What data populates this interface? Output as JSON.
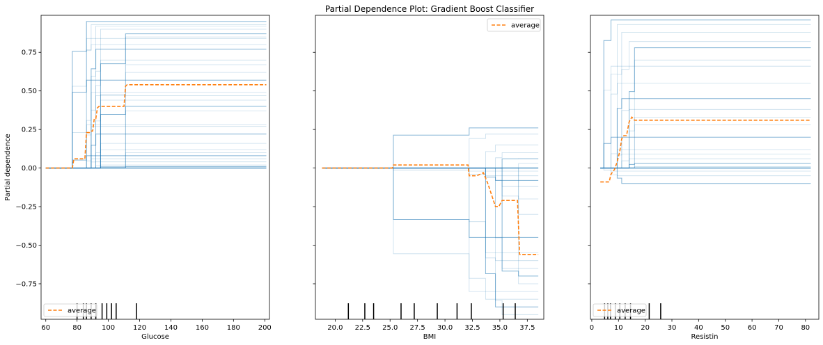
{
  "figure": {
    "title": "Partial Dependence Plot: Gradient Boost Classifier",
    "colors": {
      "ice": "#1f77b4",
      "average": "#ff7f0e",
      "rug": "#000000",
      "axis": "#000000"
    }
  },
  "chart_data": [
    {
      "type": "line",
      "id": "glucose",
      "xlabel": "Glucose",
      "ylabel": "Partial dependence",
      "xlim": [
        57,
        203
      ],
      "ylim": [
        -0.98,
        0.99
      ],
      "xticks": [
        "60",
        "80",
        "100",
        "120",
        "140",
        "160",
        "180",
        "200"
      ],
      "xtick_values": [
        60,
        80,
        100,
        120,
        140,
        160,
        180,
        200
      ],
      "yticks": [
        "0.75",
        "0.50",
        "0.25",
        "0.00",
        "−0.25",
        "−0.50",
        "−0.75"
      ],
      "ytick_values": [
        0.75,
        0.5,
        0.25,
        0.0,
        -0.25,
        -0.5,
        -0.75
      ],
      "legend": {
        "label": "average",
        "position": "lower-left"
      },
      "average": {
        "name": "average",
        "x": [
          60,
          77,
          78,
          84,
          85,
          86,
          87,
          88,
          89,
          90,
          91,
          92,
          93,
          94,
          95,
          104,
          106,
          108,
          110,
          111,
          112,
          201
        ],
        "y": [
          0,
          0,
          0.06,
          0.06,
          0.06,
          0.23,
          0.23,
          0.23,
          0.24,
          0.24,
          0.32,
          0.32,
          0.39,
          0.4,
          0.4,
          0.4,
          0.4,
          0.4,
          0.4,
          0.53,
          0.54,
          0.54
        ]
      },
      "ice_baseline": {
        "x": [
          60,
          201
        ],
        "y": [
          0,
          0
        ]
      },
      "ice_plateaus": [
        0.95,
        0.93,
        0.92,
        0.9,
        0.87,
        0.85,
        0.84,
        0.8,
        0.77,
        0.7,
        0.67,
        0.62,
        0.57,
        0.49,
        0.47,
        0.44,
        0.4,
        0.37,
        0.28,
        0.27,
        0.22,
        0.16,
        0.12,
        0.1,
        0.08,
        0.06,
        0.04,
        0.02,
        0.01
      ],
      "ice_steps_x": [
        77,
        86,
        89,
        92,
        95,
        111
      ],
      "rug": [
        80,
        84,
        86,
        89,
        92,
        96,
        99,
        102,
        105,
        118
      ]
    },
    {
      "type": "line",
      "id": "bmi",
      "xlabel": "BMI",
      "ylabel": "",
      "xlim": [
        18.2,
        39.0
      ],
      "ylim": [
        -0.98,
        0.99
      ],
      "xticks": [
        "20.0",
        "22.5",
        "25.0",
        "27.5",
        "30.0",
        "32.5",
        "35.0",
        "37.5"
      ],
      "xtick_values": [
        20.0,
        22.5,
        25.0,
        27.5,
        30.0,
        32.5,
        35.0,
        37.5
      ],
      "yticks": [],
      "ytick_values": [
        0.75,
        0.5,
        0.25,
        0.0,
        -0.25,
        -0.5,
        -0.75
      ],
      "legend": {
        "label": "average",
        "position": "upper-right"
      },
      "average": {
        "name": "average",
        "x": [
          18.8,
          25.2,
          25.3,
          32.1,
          32.2,
          32.9,
          33.5,
          33.9,
          34.6,
          34.9,
          35.2,
          36.2,
          36.6,
          36.8,
          37.0,
          38.5
        ],
        "y": [
          0,
          0,
          0.02,
          0.02,
          -0.05,
          -0.05,
          -0.03,
          -0.1,
          -0.25,
          -0.25,
          -0.21,
          -0.21,
          -0.21,
          -0.56,
          -0.56,
          -0.56
        ]
      },
      "ice_baseline": {
        "x": [
          18.8,
          38.5
        ],
        "y": [
          0,
          0
        ]
      },
      "ice_plateaus": [
        0.26,
        0.22,
        0.15,
        0.1,
        0.06,
        0.03,
        -0.02,
        -0.05,
        -0.08,
        -0.12,
        -0.2,
        -0.3,
        -0.45,
        -0.55,
        -0.6,
        -0.65,
        -0.7,
        -0.75,
        -0.8,
        -0.85,
        -0.9,
        -0.95
      ],
      "ice_steps_x": [
        25.3,
        32.2,
        33.7,
        34.6,
        35.2,
        36.7
      ],
      "rug": [
        21.2,
        22.7,
        23.5,
        26.0,
        27.2,
        29.3,
        31.1,
        32.4,
        35.3,
        36.4
      ]
    },
    {
      "type": "line",
      "id": "resistin",
      "xlabel": "Resistin",
      "ylabel": "",
      "xlim": [
        -0.5,
        85.0
      ],
      "ylim": [
        -0.98,
        0.99
      ],
      "xticks": [
        "0",
        "10",
        "20",
        "30",
        "40",
        "50",
        "60",
        "70",
        "80"
      ],
      "xtick_values": [
        0,
        10,
        20,
        30,
        40,
        50,
        60,
        70,
        80
      ],
      "yticks": [],
      "ytick_values": [
        0.75,
        0.5,
        0.25,
        0.0,
        -0.25,
        -0.5,
        -0.75
      ],
      "legend": {
        "label": "average",
        "position": "lower-left"
      },
      "average": {
        "name": "average",
        "x": [
          3.2,
          4.5,
          6.5,
          7.2,
          8.5,
          9.5,
          10.5,
          11.2,
          12.0,
          13.0,
          14.0,
          15.0,
          16.0,
          82.0
        ],
        "y": [
          -0.09,
          -0.09,
          -0.09,
          -0.04,
          -0.01,
          0.04,
          0.11,
          0.19,
          0.21,
          0.21,
          0.3,
          0.33,
          0.31,
          0.31
        ]
      },
      "ice_baseline": {
        "x": [
          3.2,
          82.0
        ],
        "y": [
          0,
          0
        ]
      },
      "ice_plateaus": [
        0.96,
        0.93,
        0.88,
        0.82,
        0.78,
        0.7,
        0.66,
        0.55,
        0.45,
        0.38,
        0.33,
        0.28,
        0.2,
        0.12,
        0.09,
        0.06,
        0.03,
        0.01,
        -0.02,
        -0.05,
        -0.1
      ],
      "ice_steps_x": [
        4.5,
        7.2,
        9.5,
        11.2,
        14.0,
        16.0
      ],
      "rug": [
        4.8,
        6.0,
        7.0,
        8.8,
        10.5,
        12.5,
        14.5,
        21.5,
        25.8
      ]
    }
  ]
}
